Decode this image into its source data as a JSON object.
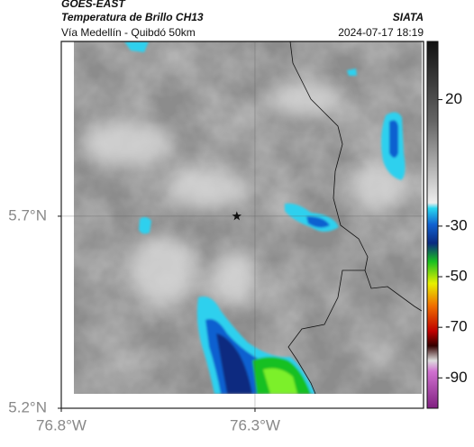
{
  "header": {
    "title": "GOES-EAST",
    "subtitle": "Temperatura de Brillo CH13",
    "source": "SIATA",
    "route": "Vía Medellín - Quibdó 50km",
    "timestamp": "2024-07-17 18:19"
  },
  "map": {
    "xlim": [
      -76.8,
      -75.865
    ],
    "ylim": [
      5.2,
      6.155
    ],
    "xticks": [
      {
        "value": -76.8,
        "label": "76.8°W"
      },
      {
        "value": -76.3,
        "label": "76.3°W"
      }
    ],
    "yticks": [
      {
        "value": 5.2,
        "label": "5.2°N"
      },
      {
        "value": 5.7,
        "label": "5.7°N"
      }
    ],
    "grid": true,
    "marker": {
      "lon": -76.347,
      "lat": 5.7
    }
  },
  "colorbar": {
    "clim": [
      -102,
      43
    ],
    "ticks": [
      20,
      -30,
      -50,
      -70,
      -90
    ]
  }
}
